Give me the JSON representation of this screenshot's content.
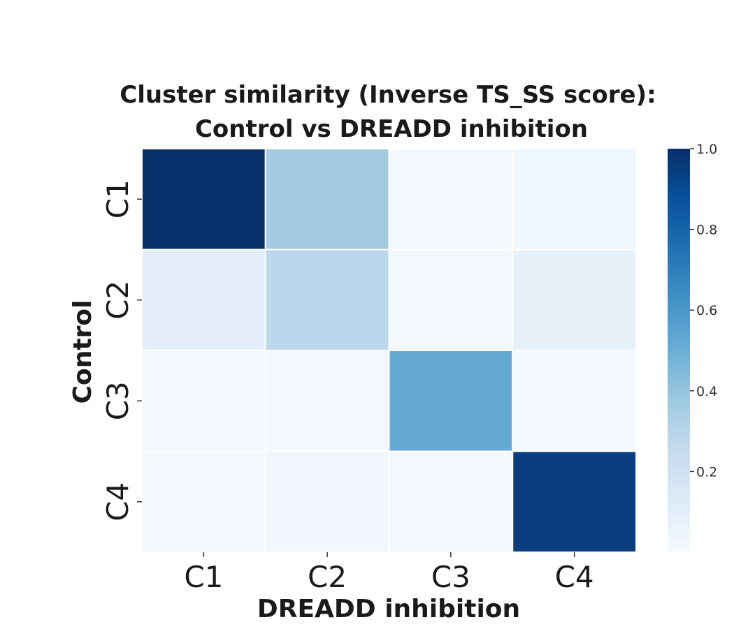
{
  "chart_data": {
    "type": "heatmap",
    "title": [
      "Cluster similarity (Inverse TS_SS score):",
      "Control vs  DREADD inhibition"
    ],
    "xlabel": "DREADD inhibition",
    "ylabel": "Control",
    "x_categories": [
      "C1",
      "C2",
      "C3",
      "C4"
    ],
    "y_categories": [
      "C1",
      "C2",
      "C3",
      "C4"
    ],
    "values": [
      [
        1.0,
        0.36,
        0.02,
        0.04
      ],
      [
        0.1,
        0.28,
        0.02,
        0.08
      ],
      [
        0.02,
        0.02,
        0.52,
        0.02
      ],
      [
        0.02,
        0.03,
        0.02,
        0.95
      ]
    ],
    "colormap": "Blues",
    "colorbar": {
      "range": [
        0.0,
        1.0
      ],
      "ticks": [
        0.2,
        0.4,
        0.6,
        0.8,
        1.0
      ],
      "tick_labels": [
        "0.2",
        "0.4",
        "0.6",
        "0.8",
        "1.0"
      ]
    },
    "grid": false,
    "legend": "colorbar-right"
  }
}
